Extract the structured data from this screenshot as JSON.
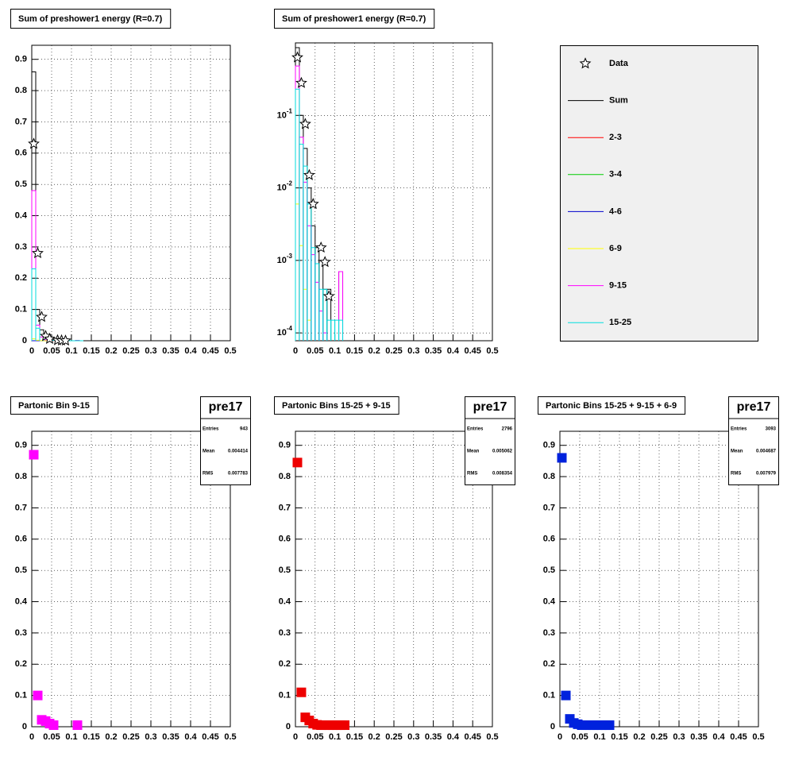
{
  "chart_data": [
    {
      "type": "histogram",
      "title": "Sum of preshower1 energy (R=0.7)",
      "bins": [
        0,
        0.01,
        0.02,
        0.03,
        0.04,
        0.05,
        0.06,
        0.07,
        0.08,
        0.09,
        0.1,
        0.11,
        0.12,
        0.13
      ],
      "series": [
        {
          "color": "#000000",
          "values": [
            0.86,
            0.1,
            0.035,
            0.01,
            0.003,
            0.0015,
            0.001,
            0.0004,
            0.0004,
            0,
            0,
            0.0007,
            0
          ]
        },
        {
          "color": "#ff0000",
          "values": [
            0,
            0,
            0,
            0,
            0,
            0,
            0,
            0,
            0,
            0,
            0,
            0,
            0
          ]
        },
        {
          "color": "#00cc00",
          "values": [
            0,
            0,
            0,
            0,
            0,
            0,
            0,
            0,
            0,
            0,
            0,
            0,
            0
          ]
        },
        {
          "color": "#0000cc",
          "values": [
            0,
            0,
            0,
            0,
            0,
            0,
            0,
            0,
            0,
            0,
            0,
            0,
            0
          ]
        },
        {
          "color": "#ffff00",
          "values": [
            0.006,
            0.0016,
            0.0004,
            0.00015,
            0,
            0,
            0,
            0,
            0,
            0,
            0,
            0,
            0
          ]
        },
        {
          "color": "#ff00ff",
          "values": [
            0.48,
            0.05,
            0.012,
            0.003,
            0.0012,
            0.0005,
            0.0002,
            0.0001,
            0,
            0,
            0,
            0.0007,
            0
          ]
        },
        {
          "color": "#00dddd",
          "values": [
            0.23,
            0.04,
            0.02,
            0.006,
            0.0015,
            0.0009,
            0.0004,
            0.0004,
            0.00015,
            0.00015,
            0.00015,
            0.00015,
            0
          ]
        }
      ],
      "data": {
        "x": [
          0.005,
          0.015,
          0.025,
          0.035,
          0.045,
          0.065,
          0.075,
          0.085
        ],
        "values": [
          0.63,
          0.28,
          0.076,
          0.015,
          0.006,
          0.0015,
          0.00095,
          0.00032
        ]
      },
      "xlim": [
        0,
        0.5
      ],
      "ylim": [
        0,
        0.945
      ],
      "xticks": [
        0,
        0.05,
        0.1,
        0.15,
        0.2,
        0.25,
        0.3,
        0.35,
        0.4,
        0.45,
        0.5
      ],
      "yticks": [
        0,
        0.1,
        0.2,
        0.3,
        0.4,
        0.5,
        0.6,
        0.7,
        0.8,
        0.9
      ],
      "grid": true
    },
    {
      "type": "histogram",
      "title": "Sum of preshower1 energy (R=0.7)",
      "log_y": true,
      "legend": true,
      "bins": [
        0,
        0.01,
        0.02,
        0.03,
        0.04,
        0.05,
        0.06,
        0.07,
        0.08,
        0.09,
        0.1,
        0.11,
        0.12,
        0.13
      ],
      "series": [
        {
          "name": "Sum",
          "color": "#000000",
          "values": [
            0.86,
            0.1,
            0.035,
            0.01,
            0.003,
            0.0015,
            0.001,
            0.0004,
            0.0004,
            0,
            0,
            0.0007,
            0
          ]
        },
        {
          "name": "2-3",
          "color": "#ff0000",
          "values": [
            0,
            0,
            0,
            0,
            0,
            0,
            0,
            0,
            0,
            0,
            0,
            0,
            0
          ]
        },
        {
          "name": "3-4",
          "color": "#00cc00",
          "values": [
            0,
            0,
            0,
            0,
            0,
            0,
            0,
            0,
            0,
            0,
            0,
            0,
            0
          ]
        },
        {
          "name": "4-6",
          "color": "#0000cc",
          "values": [
            0,
            0,
            0,
            0,
            0,
            0,
            0,
            0,
            0,
            0,
            0,
            0,
            0
          ]
        },
        {
          "name": "6-9",
          "color": "#ffff00",
          "values": [
            0.006,
            0.0016,
            0.0004,
            0.00015,
            0,
            0,
            0,
            0,
            0,
            0,
            0,
            0,
            0
          ]
        },
        {
          "name": "9-15",
          "color": "#ff00ff",
          "values": [
            0.48,
            0.05,
            0.012,
            0.003,
            0.0012,
            0.0005,
            0.0002,
            0.0001,
            0,
            0,
            0,
            0.0007,
            0
          ]
        },
        {
          "name": "15-25",
          "color": "#00dddd",
          "values": [
            0.23,
            0.04,
            0.02,
            0.006,
            0.0015,
            0.0009,
            0.0004,
            0.0004,
            0.00015,
            0.00015,
            0.00015,
            0.00015,
            0
          ]
        }
      ],
      "data": {
        "name": "Data",
        "x": [
          0.005,
          0.015,
          0.025,
          0.035,
          0.045,
          0.065,
          0.075,
          0.085
        ],
        "values": [
          0.63,
          0.28,
          0.076,
          0.015,
          0.006,
          0.0015,
          0.00095,
          0.00032
        ]
      },
      "xlim": [
        0,
        0.5
      ],
      "ylim": [
        7.8e-05,
        1.0
      ],
      "xticks": [
        0,
        0.05,
        0.1,
        0.15,
        0.2,
        0.25,
        0.3,
        0.35,
        0.4,
        0.45,
        0.5
      ],
      "yticks": [
        {
          "value": 0.1,
          "label": "10",
          "exponent": "-1"
        },
        {
          "value": 0.01,
          "label": "10",
          "exponent": "-2"
        },
        {
          "value": 0.001,
          "label": "10",
          "exponent": "-3"
        },
        {
          "value": 0.0001,
          "label": "10",
          "exponent": "-4"
        }
      ],
      "grid": true
    },
    {
      "type": "scatter",
      "title": "Partonic Bin 9-15",
      "color": "#ff00ff",
      "x": [
        0.005,
        0.015,
        0.025,
        0.035,
        0.045,
        0.055,
        0.115
      ],
      "values": [
        0.87,
        0.1,
        0.022,
        0.018,
        0.01,
        0.005,
        0.005
      ],
      "stats": {
        "name": "pre17",
        "rows": [
          {
            "label": "Entries",
            "value": "943"
          },
          {
            "label": "Mean",
            "value": "0.004414"
          },
          {
            "label": "RMS",
            "value": "0.007783"
          }
        ]
      },
      "xlim": [
        0,
        0.5
      ],
      "ylim": [
        0,
        0.945
      ],
      "xticks": [
        0,
        0.05,
        0.1,
        0.15,
        0.2,
        0.25,
        0.3,
        0.35,
        0.4,
        0.45,
        0.5
      ],
      "yticks": [
        0,
        0.1,
        0.2,
        0.3,
        0.4,
        0.5,
        0.6,
        0.7,
        0.8,
        0.9
      ],
      "grid": true
    },
    {
      "type": "scatter",
      "title": "Partonic Bins 15-25 + 9-15",
      "color": "#ee0000",
      "x": [
        0.005,
        0.015,
        0.025,
        0.035,
        0.045,
        0.055,
        0.065,
        0.075,
        0.085,
        0.095,
        0.105,
        0.115,
        0.125
      ],
      "values": [
        0.845,
        0.11,
        0.03,
        0.02,
        0.01,
        0.006,
        0.005,
        0.005,
        0.005,
        0.005,
        0.005,
        0.005,
        0.005
      ],
      "stats": {
        "name": "pre17",
        "rows": [
          {
            "label": "Entries",
            "value": "2796"
          },
          {
            "label": "Mean",
            "value": "0.005062"
          },
          {
            "label": "RMS",
            "value": "0.008354"
          }
        ]
      },
      "xlim": [
        0,
        0.5
      ],
      "ylim": [
        0,
        0.945
      ],
      "xticks": [
        0,
        0.05,
        0.1,
        0.15,
        0.2,
        0.25,
        0.3,
        0.35,
        0.4,
        0.45,
        0.5
      ],
      "yticks": [
        0,
        0.1,
        0.2,
        0.3,
        0.4,
        0.5,
        0.6,
        0.7,
        0.8,
        0.9
      ],
      "grid": true
    },
    {
      "type": "scatter",
      "title": "Partonic Bins 15-25 + 9-15 + 6-9",
      "color": "#0022dd",
      "x": [
        0.005,
        0.015,
        0.025,
        0.035,
        0.045,
        0.055,
        0.065,
        0.075,
        0.085,
        0.095,
        0.105,
        0.115,
        0.125
      ],
      "values": [
        0.86,
        0.1,
        0.025,
        0.012,
        0.008,
        0.005,
        0.005,
        0.005,
        0.005,
        0.005,
        0.005,
        0.005,
        0.005
      ],
      "stats": {
        "name": "pre17",
        "rows": [
          {
            "label": "Entries",
            "value": "3093"
          },
          {
            "label": "Mean",
            "value": "0.004687"
          },
          {
            "label": "RMS",
            "value": "0.007979"
          }
        ]
      },
      "xlim": [
        0,
        0.5
      ],
      "ylim": [
        0,
        0.945
      ],
      "xticks": [
        0,
        0.05,
        0.1,
        0.15,
        0.2,
        0.25,
        0.3,
        0.35,
        0.4,
        0.45,
        0.5
      ],
      "yticks": [
        0,
        0.1,
        0.2,
        0.3,
        0.4,
        0.5,
        0.6,
        0.7,
        0.8,
        0.9
      ],
      "grid": true
    }
  ]
}
